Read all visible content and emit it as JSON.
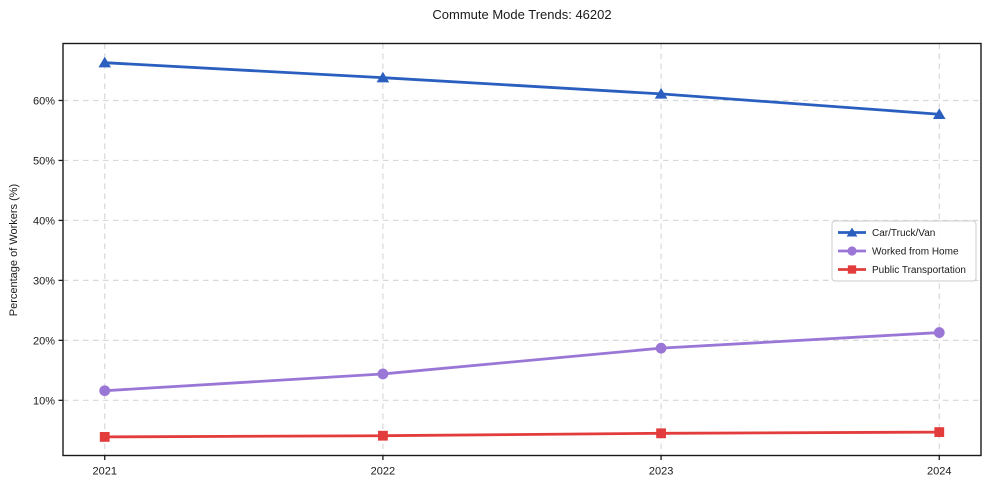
{
  "chart_data": {
    "type": "line",
    "title": "Commute Mode Trends: 46202",
    "ylabel": "Percentage of Workers (%)",
    "xlabel": "",
    "x": [
      2021,
      2022,
      2023,
      2024
    ],
    "xtick_labels": [
      "2021",
      "2022",
      "2023",
      "2024"
    ],
    "series": [
      {
        "name": "Car/Truck/Van",
        "color": "#2a5fbf",
        "marker": "triangle",
        "values": [
          66.3,
          63.8,
          61.1,
          57.7
        ]
      },
      {
        "name": "Worked from Home",
        "color": "#9a77d6",
        "marker": "circle",
        "values": [
          11.6,
          14.4,
          18.7,
          21.3
        ]
      },
      {
        "name": "Public Transportation",
        "color": "#e23c3c",
        "marker": "square",
        "values": [
          3.9,
          4.1,
          4.5,
          4.7
        ]
      }
    ],
    "xlim": [
      2020.85,
      2024.15
    ],
    "ylim": [
      0.8,
      69.5
    ],
    "yticks": [
      10,
      20,
      30,
      40,
      50,
      60
    ],
    "ytick_labels": [
      "10%",
      "20%",
      "30%",
      "40%",
      "50%",
      "60%"
    ],
    "grid": true,
    "grid_style": "dashed",
    "legend_position": "center-right",
    "colors": {
      "background": "#ffffff",
      "grid": "#d8d8d8",
      "spine": "#1a1a1a",
      "text": "#1a1a1a",
      "legend_border": "#cccccc",
      "legend_background": "#ffffff"
    }
  }
}
